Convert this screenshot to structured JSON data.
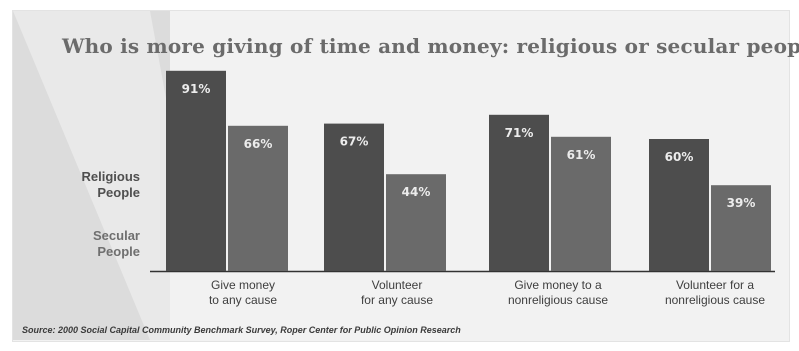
{
  "chart_data": {
    "type": "bar",
    "title": "Who is more giving of time and money: religious or secular people?",
    "categories": [
      "Give money\nto any cause",
      "Volunteer\nfor any cause",
      "Give money to a\nnonreligious cause",
      "Volunteer for a\nnonreligious cause"
    ],
    "series": [
      {
        "name": "Religious\nPeople",
        "values": [
          91,
          67,
          71,
          60
        ],
        "labels": [
          "91%",
          "67%",
          "71%",
          "60%"
        ],
        "color": "#4d4d4d"
      },
      {
        "name": "Secular\nPeople",
        "values": [
          66,
          44,
          61,
          39
        ],
        "labels": [
          "66%",
          "44%",
          "61%",
          "39%"
        ],
        "color": "#6a6a6a"
      }
    ],
    "ylim": [
      0,
      100
    ],
    "grid": false,
    "legend": "left",
    "source": "Source: 2000 Social Capital Community Benchmark Survey, Roper Center for Public Opinion Research"
  }
}
